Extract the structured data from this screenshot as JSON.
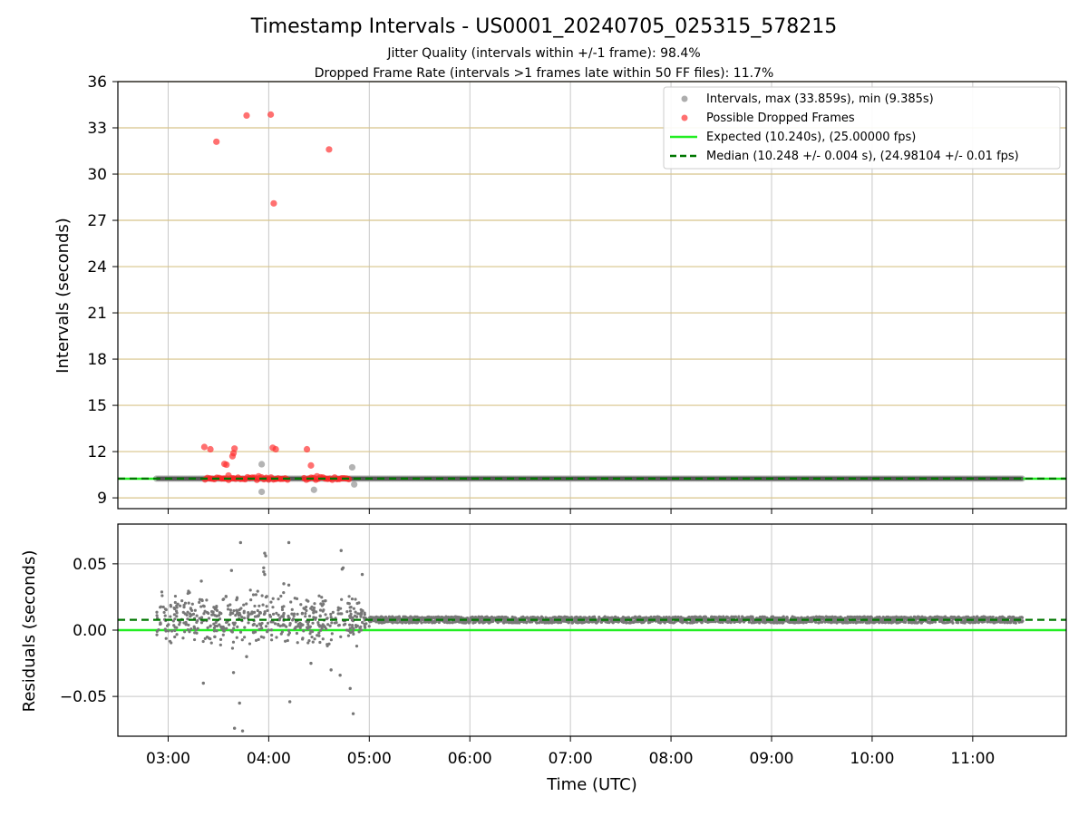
{
  "chart_data": [
    {
      "type": "scatter",
      "title": "Timestamp Intervals - US0001_20240705_025315_578215",
      "subtitle_lines": [
        "Jitter Quality (intervals within +/-1 frame): 98.4%",
        "Dropped Frame Rate (intervals >1 frames late within 50 FF files): 11.7%"
      ],
      "xlabel": "",
      "ylabel": "Intervals (seconds)",
      "xlim_hours": [
        2.5,
        11.93
      ],
      "ylim": [
        8.3,
        36.0
      ],
      "yticks": [
        9,
        12,
        15,
        18,
        21,
        24,
        27,
        30,
        33,
        36
      ],
      "grid": true,
      "legend_placement": "top-right",
      "legend": [
        "Intervals, max (33.859s), min (9.385s)",
        "Possible Dropped Frames",
        "Expected (10.240s), (25.00000 fps)",
        "Median (10.248 +/- 0.004 s), (24.98104 +/- 0.01 fps)"
      ],
      "series": [
        {
          "name": "Intervals, max (33.859s), min (9.385s)",
          "color": "#999999",
          "dense_band": {
            "x_start": "02:53",
            "x_end": "11:30",
            "y": 10.248
          },
          "points": [
            [
              3.93,
              9.39
            ],
            [
              3.93,
              11.18
            ],
            [
              4.45,
              9.52
            ],
            [
              4.83,
              10.98
            ],
            [
              4.85,
              9.87
            ],
            [
              4.0,
              10.2
            ]
          ]
        },
        {
          "name": "Possible Dropped Frames",
          "color": "#ff3333",
          "dense_band": {
            "x_start": "03:22",
            "x_end": "04:48",
            "y": 10.25
          },
          "points": [
            [
              3.48,
              32.1
            ],
            [
              3.78,
              33.8
            ],
            [
              4.02,
              33.86
            ],
            [
              4.6,
              31.6
            ],
            [
              4.05,
              28.1
            ],
            [
              3.36,
              12.3
            ],
            [
              3.42,
              12.15
            ],
            [
              3.66,
              12.2
            ],
            [
              3.64,
              11.7
            ],
            [
              3.65,
              11.9
            ],
            [
              3.56,
              11.2
            ],
            [
              3.58,
              11.15
            ],
            [
              4.04,
              12.25
            ],
            [
              4.07,
              12.15
            ],
            [
              4.38,
              12.15
            ],
            [
              4.42,
              11.1
            ],
            [
              3.6,
              10.45
            ],
            [
              3.9,
              10.4
            ],
            [
              4.48,
              10.4
            ]
          ]
        },
        {
          "name": "Expected (10.240s), (25.00000 fps)",
          "type": "hline",
          "y": 10.24,
          "color": "#22ee22"
        },
        {
          "name": "Median (10.248 +/- 0.004 s), (24.98104 +/- 0.01 fps)",
          "type": "hline",
          "y": 10.248,
          "color": "#007700",
          "dash": true
        }
      ]
    },
    {
      "type": "scatter",
      "xlabel": "Time (UTC)",
      "ylabel": "Residuals (seconds)",
      "xlim_hours": [
        2.5,
        11.93
      ],
      "xticks": [
        "03:00",
        "04:00",
        "05:00",
        "06:00",
        "07:00",
        "08:00",
        "09:00",
        "10:00",
        "11:00"
      ],
      "ylim": [
        -0.08,
        0.08
      ],
      "yticks": [
        "0.05",
        "0.00",
        "−0.05"
      ],
      "grid": true,
      "series": [
        {
          "name": "",
          "color": "#777777",
          "noisy_segment": {
            "x_start": "02:53",
            "x_end": "05:00",
            "center": 0.008,
            "spread": 0.012
          },
          "steady_segment": {
            "x_start": "05:00",
            "x_end": "11:30",
            "center": 0.0078,
            "spread": 0.0012
          },
          "outliers": [
            [
              3.66,
              -0.074
            ],
            [
              3.74,
              -0.076
            ],
            [
              3.71,
              -0.055
            ],
            [
              3.72,
              0.066
            ],
            [
              3.96,
              0.058
            ],
            [
              3.97,
              0.056
            ],
            [
              3.95,
              0.047
            ],
            [
              3.96,
              0.042
            ],
            [
              4.2,
              0.066
            ],
            [
              4.21,
              -0.054
            ],
            [
              4.72,
              0.06
            ],
            [
              4.73,
              0.046
            ],
            [
              4.74,
              0.047
            ],
            [
              4.81,
              -0.044
            ],
            [
              4.84,
              -0.063
            ],
            [
              4.93,
              0.042
            ],
            [
              3.35,
              -0.04
            ],
            [
              3.65,
              -0.032
            ],
            [
              3.78,
              -0.02
            ],
            [
              4.15,
              0.035
            ],
            [
              3.63,
              0.045
            ],
            [
              4.42,
              -0.025
            ],
            [
              4.62,
              -0.03
            ],
            [
              4.71,
              -0.034
            ],
            [
              3.33,
              0.037
            ],
            [
              3.95,
              0.044
            ],
            [
              4.2,
              0.034
            ]
          ]
        },
        {
          "name": "Expected",
          "type": "hline",
          "y": 0.0,
          "color": "#22ee22"
        },
        {
          "name": "Median",
          "type": "hline",
          "y": 0.0078,
          "color": "#007700",
          "dash": true
        }
      ]
    }
  ]
}
